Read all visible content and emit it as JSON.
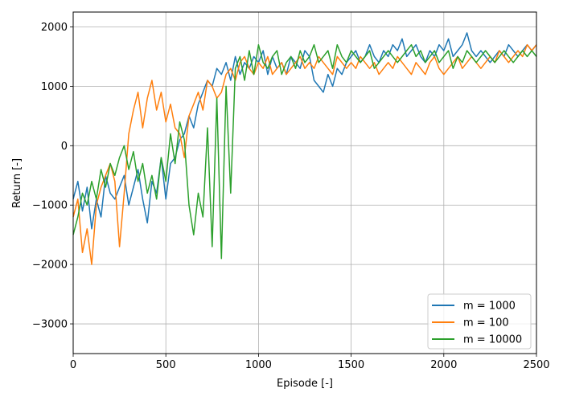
{
  "chart_data": {
    "type": "line",
    "title": "",
    "xlabel": "Episode [-]",
    "ylabel": "Return [-]",
    "xlim": [
      0,
      2500
    ],
    "ylim": [
      -3500,
      2250
    ],
    "xticks": [
      0,
      500,
      1000,
      1500,
      2000,
      2500
    ],
    "xtick_labels": [
      "0",
      "500",
      "1000",
      "1500",
      "2000",
      "2500"
    ],
    "yticks": [
      -3000,
      -2000,
      -1000,
      0,
      1000,
      2000
    ],
    "ytick_labels": [
      "−3000",
      "−2000",
      "−1000",
      "0",
      "1000",
      "2000"
    ],
    "grid": true,
    "legend_position": "lower-right",
    "series": [
      {
        "name": "m = 1000",
        "color": "#1f77b4",
        "x": [
          0,
          25,
          50,
          75,
          100,
          125,
          150,
          175,
          200,
          225,
          250,
          275,
          300,
          325,
          350,
          375,
          400,
          425,
          450,
          475,
          500,
          525,
          550,
          575,
          600,
          625,
          650,
          675,
          700,
          725,
          750,
          775,
          800,
          825,
          850,
          875,
          900,
          925,
          950,
          975,
          1000,
          1025,
          1050,
          1075,
          1100,
          1125,
          1150,
          1175,
          1200,
          1225,
          1250,
          1275,
          1300,
          1325,
          1350,
          1375,
          1400,
          1425,
          1450,
          1475,
          1500,
          1525,
          1550,
          1575,
          1600,
          1625,
          1650,
          1675,
          1700,
          1725,
          1750,
          1775,
          1800,
          1825,
          1850,
          1875,
          1900,
          1925,
          1950,
          1975,
          2000,
          2025,
          2050,
          2075,
          2100,
          2125,
          2150,
          2175,
          2200,
          2225,
          2250,
          2275,
          2300,
          2325,
          2350,
          2375,
          2400,
          2425,
          2450,
          2475,
          2500
        ],
        "values": [
          -900,
          -600,
          -1100,
          -700,
          -1400,
          -900,
          -1200,
          -500,
          -800,
          -900,
          -700,
          -500,
          -1000,
          -700,
          -400,
          -900,
          -1300,
          -600,
          -800,
          -200,
          -900,
          -300,
          -200,
          100,
          200,
          500,
          300,
          700,
          900,
          1100,
          1000,
          1300,
          1200,
          1400,
          1100,
          1500,
          1200,
          1400,
          1300,
          1500,
          1400,
          1600,
          1200,
          1500,
          1300,
          1400,
          1200,
          1500,
          1400,
          1300,
          1600,
          1500,
          1100,
          1000,
          900,
          1200,
          1000,
          1300,
          1200,
          1400,
          1500,
          1600,
          1400,
          1500,
          1700,
          1500,
          1400,
          1600,
          1500,
          1700,
          1600,
          1800,
          1500,
          1600,
          1700,
          1500,
          1400,
          1600,
          1500,
          1700,
          1600,
          1800,
          1500,
          1600,
          1700,
          1900,
          1600,
          1500,
          1600,
          1500,
          1400,
          1500,
          1600,
          1500,
          1700,
          1600,
          1500,
          1600,
          1700,
          1600,
          1700
        ]
      },
      {
        "name": "m = 100",
        "color": "#ff7f0e",
        "x": [
          0,
          25,
          50,
          75,
          100,
          125,
          150,
          175,
          200,
          225,
          250,
          275,
          300,
          325,
          350,
          375,
          400,
          425,
          450,
          475,
          500,
          525,
          550,
          575,
          600,
          625,
          650,
          675,
          700,
          725,
          750,
          775,
          800,
          825,
          850,
          875,
          900,
          925,
          950,
          975,
          1000,
          1025,
          1050,
          1075,
          1100,
          1125,
          1150,
          1175,
          1200,
          1225,
          1250,
          1275,
          1300,
          1325,
          1350,
          1375,
          1400,
          1425,
          1450,
          1475,
          1500,
          1525,
          1550,
          1575,
          1600,
          1625,
          1650,
          1675,
          1700,
          1725,
          1750,
          1775,
          1800,
          1825,
          1850,
          1875,
          1900,
          1925,
          1950,
          1975,
          2000,
          2025,
          2050,
          2075,
          2100,
          2125,
          2150,
          2175,
          2200,
          2225,
          2250,
          2275,
          2300,
          2325,
          2350,
          2375,
          2400,
          2425,
          2450,
          2475,
          2500
        ],
        "values": [
          -1200,
          -900,
          -1800,
          -1400,
          -2000,
          -1000,
          -700,
          -500,
          -300,
          -600,
          -1700,
          -800,
          200,
          600,
          900,
          300,
          800,
          1100,
          600,
          900,
          400,
          700,
          300,
          200,
          -200,
          500,
          700,
          900,
          600,
          1100,
          1000,
          800,
          900,
          1200,
          1300,
          1100,
          1400,
          1500,
          1300,
          1200,
          1400,
          1300,
          1500,
          1200,
          1300,
          1400,
          1200,
          1300,
          1400,
          1500,
          1300,
          1400,
          1300,
          1500,
          1400,
          1300,
          1200,
          1500,
          1400,
          1300,
          1400,
          1300,
          1500,
          1400,
          1300,
          1400,
          1200,
          1300,
          1400,
          1300,
          1500,
          1400,
          1300,
          1200,
          1400,
          1300,
          1200,
          1400,
          1500,
          1300,
          1200,
          1300,
          1400,
          1500,
          1300,
          1400,
          1500,
          1400,
          1300,
          1400,
          1500,
          1400,
          1600,
          1500,
          1400,
          1500,
          1600,
          1500,
          1700,
          1600,
          1700
        ]
      },
      {
        "name": "m = 10000",
        "color": "#2ca02c",
        "x": [
          0,
          25,
          50,
          75,
          100,
          125,
          150,
          175,
          200,
          225,
          250,
          275,
          300,
          325,
          350,
          375,
          400,
          425,
          450,
          475,
          500,
          525,
          550,
          575,
          600,
          625,
          650,
          675,
          700,
          725,
          750,
          775,
          800,
          825,
          850,
          875,
          900,
          925,
          950,
          975,
          1000,
          1025,
          1050,
          1075,
          1100,
          1125,
          1150,
          1175,
          1200,
          1225,
          1250,
          1275,
          1300,
          1325,
          1350,
          1375,
          1400,
          1425,
          1450,
          1475,
          1500,
          1525,
          1550,
          1575,
          1600,
          1625,
          1650,
          1675,
          1700,
          1725,
          1750,
          1775,
          1800,
          1825,
          1850,
          1875,
          1900,
          1925,
          1950,
          1975,
          2000,
          2025,
          2050,
          2075,
          2100,
          2125,
          2150,
          2175,
          2200,
          2225,
          2250,
          2275,
          2300,
          2325,
          2350,
          2375,
          2400,
          2425,
          2450,
          2475,
          2500
        ],
        "values": [
          -1500,
          -1200,
          -800,
          -1000,
          -600,
          -900,
          -400,
          -700,
          -300,
          -500,
          -200,
          0,
          -400,
          -100,
          -600,
          -300,
          -800,
          -500,
          -900,
          -200,
          -600,
          200,
          -300,
          400,
          100,
          -1000,
          -1500,
          -800,
          -1200,
          300,
          -1700,
          800,
          -1900,
          1000,
          -800,
          1300,
          1500,
          1100,
          1600,
          1200,
          1700,
          1400,
          1300,
          1500,
          1600,
          1200,
          1400,
          1500,
          1300,
          1600,
          1400,
          1500,
          1700,
          1400,
          1500,
          1600,
          1300,
          1700,
          1500,
          1400,
          1600,
          1500,
          1400,
          1500,
          1600,
          1300,
          1400,
          1500,
          1600,
          1500,
          1400,
          1500,
          1600,
          1700,
          1500,
          1600,
          1400,
          1500,
          1600,
          1400,
          1500,
          1600,
          1300,
          1500,
          1400,
          1600,
          1500,
          1400,
          1500,
          1600,
          1500,
          1400,
          1500,
          1600,
          1500,
          1400,
          1500,
          1600,
          1500,
          1600,
          1500
        ]
      }
    ]
  }
}
